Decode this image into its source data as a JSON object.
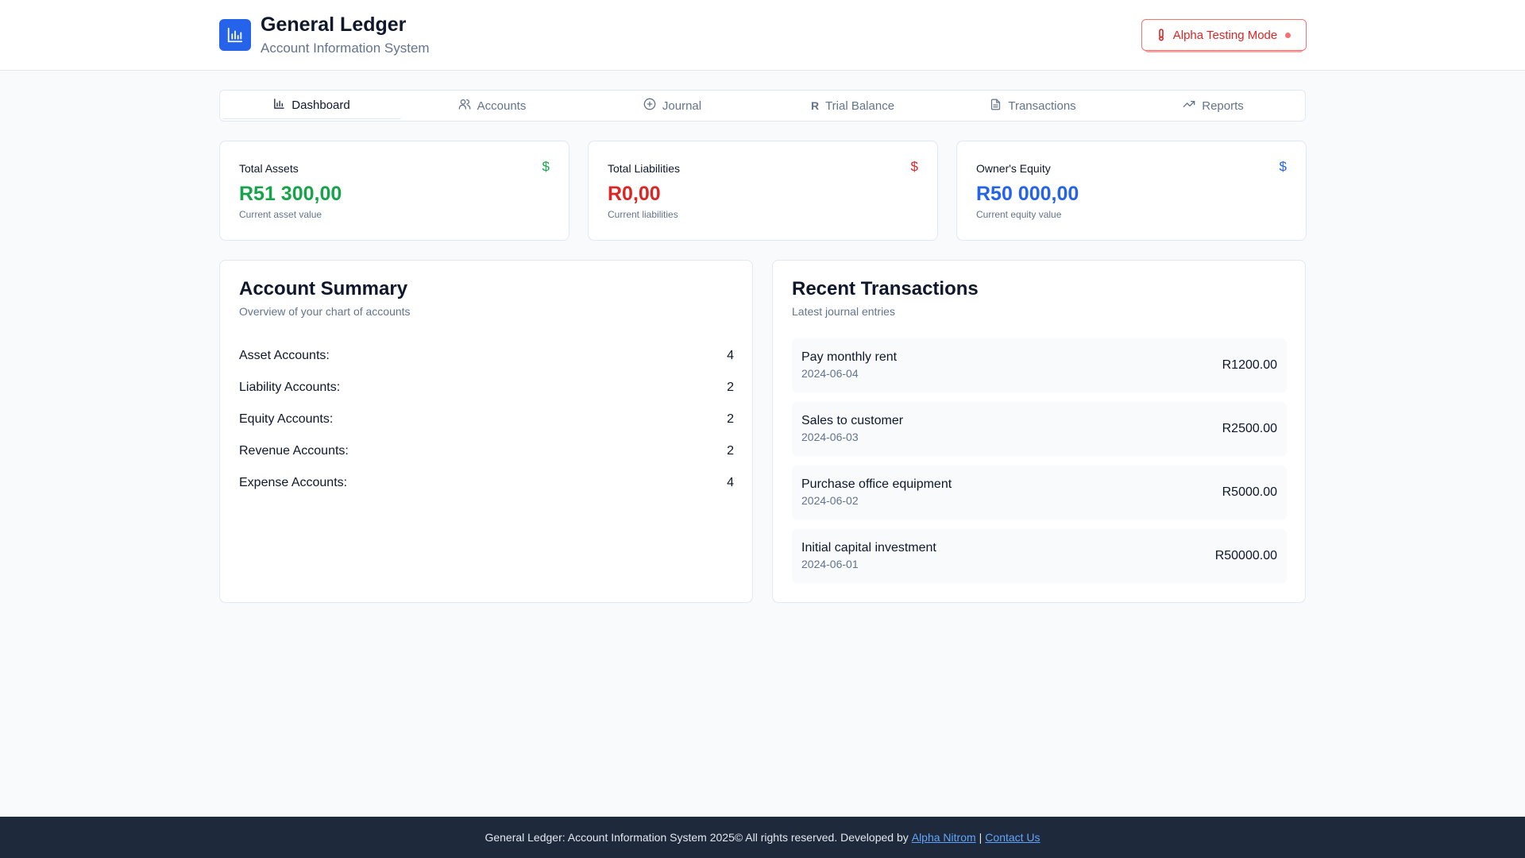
{
  "header": {
    "title": "General Ledger",
    "subtitle": "Account Information System",
    "logo_icon": "bar-chart-icon",
    "alpha_label": "Alpha Testing Mode",
    "alpha_color": "#dc2626"
  },
  "tabs": [
    {
      "label": "Dashboard",
      "icon": "bar-chart-icon",
      "active": true
    },
    {
      "label": "Accounts",
      "icon": "users-icon",
      "active": false
    },
    {
      "label": "Journal",
      "icon": "plus-circle-icon",
      "active": false
    },
    {
      "label": "Trial Balance",
      "icon": "rand-icon",
      "glyph": "R",
      "active": false
    },
    {
      "label": "Transactions",
      "icon": "file-text-icon",
      "active": false
    },
    {
      "label": "Reports",
      "icon": "trending-up-icon",
      "active": false
    }
  ],
  "stats": {
    "assets": {
      "label": "Total Assets",
      "icon": "$",
      "value": "R51 300,00",
      "note": "Current asset value",
      "color": "#16a34a"
    },
    "liabilities": {
      "label": "Total Liabilities",
      "icon": "$",
      "value": "R0,00",
      "note": "Current liabilities",
      "color": "#dc2626"
    },
    "equity": {
      "label": "Owner's Equity",
      "icon": "$",
      "value": "R50 000,00",
      "note": "Current equity value",
      "color": "#2563eb"
    }
  },
  "summary": {
    "title": "Account Summary",
    "subtitle": "Overview of your chart of accounts",
    "rows": [
      {
        "label": "Asset Accounts:",
        "count": "4"
      },
      {
        "label": "Liability Accounts:",
        "count": "2"
      },
      {
        "label": "Equity Accounts:",
        "count": "2"
      },
      {
        "label": "Revenue Accounts:",
        "count": "2"
      },
      {
        "label": "Expense Accounts:",
        "count": "4"
      }
    ]
  },
  "transactions": {
    "title": "Recent Transactions",
    "subtitle": "Latest journal entries",
    "rows": [
      {
        "description": "Pay monthly rent",
        "date": "2024-06-04",
        "amount": "R1200.00"
      },
      {
        "description": "Sales to customer",
        "date": "2024-06-03",
        "amount": "R2500.00"
      },
      {
        "description": "Purchase office equipment",
        "date": "2024-06-02",
        "amount": "R5000.00"
      },
      {
        "description": "Initial capital investment",
        "date": "2024-06-01",
        "amount": "R50000.00"
      }
    ]
  },
  "footer": {
    "text": "General Ledger: Account Information System 2025© All rights reserved. Developed by",
    "developer_link": "Alpha Nitrom",
    "separator": "|",
    "contact_link": "Contact Us"
  }
}
